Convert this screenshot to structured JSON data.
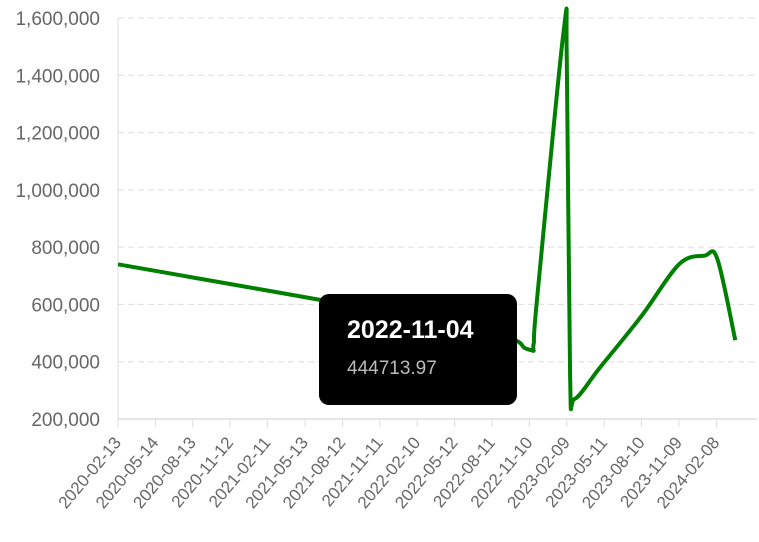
{
  "chart_data": {
    "type": "line",
    "x_ticks": [
      "2020-02-13",
      "2020-05-14",
      "2020-08-13",
      "2020-11-12",
      "2021-02-11",
      "2021-05-13",
      "2021-08-12",
      "2021-11-11",
      "2022-02-10",
      "2022-05-12",
      "2022-08-11",
      "2022-11-10",
      "2023-02-09",
      "2023-05-11",
      "2023-08-10",
      "2023-11-09",
      "2024-02-08"
    ],
    "y_ticks": [
      200000,
      400000,
      600000,
      800000,
      1000000,
      1200000,
      1400000,
      1600000
    ],
    "y_tick_labels": [
      "200,000",
      "400,000",
      "600,000",
      "800,000",
      "1,000,000",
      "1,200,000",
      "1,400,000",
      "1,600,000"
    ],
    "ylim": [
      200000,
      1600000
    ],
    "grid": true,
    "series": [
      {
        "color": "#008000",
        "points": [
          {
            "x": "2020-02-13",
            "y": 740000
          },
          {
            "x": "2022-06-15",
            "y": 520000
          },
          {
            "x": "2022-11-04",
            "y": 444713.97
          },
          {
            "x": "2022-11-20",
            "y": 460000
          },
          {
            "x": "2022-11-28",
            "y": 610000
          },
          {
            "x": "2023-02-01",
            "y": 1550000
          },
          {
            "x": "2023-02-09",
            "y": 1450000
          },
          {
            "x": "2023-02-17",
            "y": 350000
          },
          {
            "x": "2023-02-28",
            "y": 270000
          },
          {
            "x": "2023-05-01",
            "y": 380000
          },
          {
            "x": "2023-08-10",
            "y": 560000
          },
          {
            "x": "2023-11-09",
            "y": 740000
          },
          {
            "x": "2024-01-10",
            "y": 770000
          },
          {
            "x": "2024-02-10",
            "y": 760000
          },
          {
            "x": "2024-03-25",
            "y": 475000
          }
        ]
      }
    ],
    "tooltip": {
      "title": "2022-11-04",
      "value": "444713.97",
      "x": "2022-11-04",
      "y": 444713.97
    }
  }
}
